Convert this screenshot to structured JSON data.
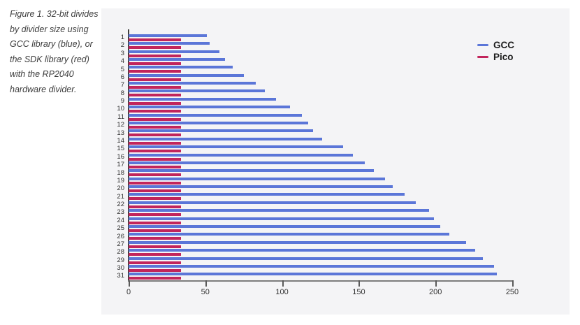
{
  "caption": {
    "lines": [
      "Figure 1. 32-bit divides",
      "by divider size using",
      "GCC library (blue), or",
      "the SDK library (red)",
      "with the RP2040",
      "hardware divider."
    ]
  },
  "chart_data": {
    "type": "bar",
    "orientation": "horizontal",
    "title": "",
    "xlabel": "",
    "ylabel": "",
    "categories": [
      1,
      2,
      3,
      4,
      5,
      6,
      7,
      8,
      9,
      10,
      11,
      12,
      13,
      14,
      15,
      16,
      17,
      18,
      19,
      20,
      21,
      22,
      23,
      24,
      25,
      26,
      27,
      28,
      29,
      30,
      31
    ],
    "series": [
      {
        "name": "GCC",
        "color": "#5b76d8",
        "values": [
          51,
          53,
          59,
          63,
          68,
          75,
          83,
          89,
          96,
          105,
          113,
          117,
          120,
          126,
          140,
          146,
          154,
          160,
          167,
          172,
          180,
          187,
          196,
          199,
          203,
          209,
          220,
          226,
          231,
          238,
          240
        ]
      },
      {
        "name": "Pico",
        "color": "#c2255c",
        "values": [
          34,
          34,
          34,
          34,
          34,
          34,
          34,
          34,
          34,
          34,
          34,
          34,
          34,
          34,
          34,
          34,
          34,
          34,
          34,
          34,
          34,
          34,
          34,
          34,
          34,
          34,
          34,
          34,
          34,
          34,
          34
        ]
      }
    ],
    "xlim": [
      0,
      250
    ],
    "x_ticks": [
      0,
      50,
      100,
      150,
      200,
      250
    ],
    "grid": false,
    "legend_position": "top-right",
    "panel_background": "#f4f4f6"
  }
}
